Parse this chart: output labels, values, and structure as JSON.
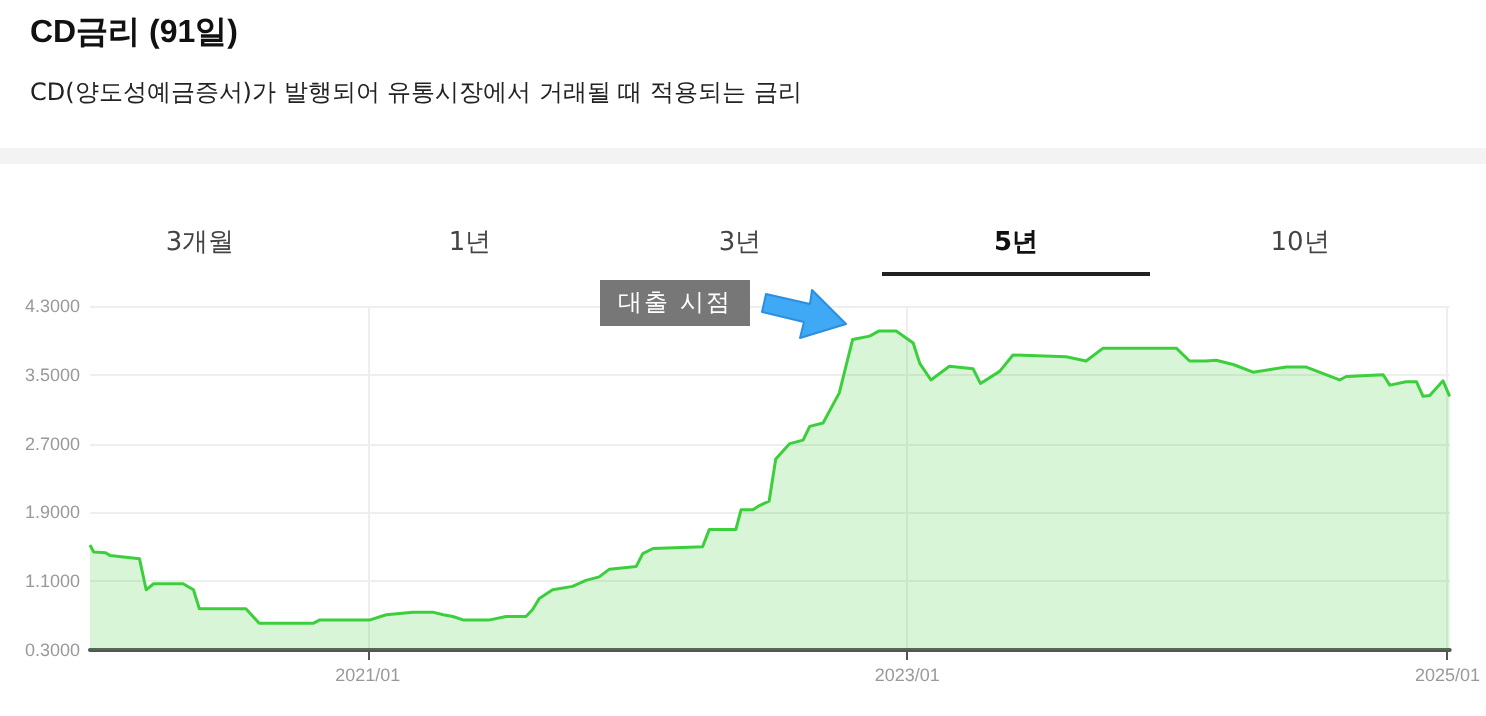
{
  "chart_data": {
    "type": "area",
    "title": "CD금리 (91일)",
    "subtitle": "CD(양도성예금증서)가 발행되어 유통시장에서 거래될 때 적용되는 금리",
    "annotations": [
      "3개월",
      "1년",
      "3년",
      "5년",
      "10년",
      "대출 시점"
    ],
    "x": [
      "2019-12-22",
      "2019-12-27",
      "2020-01-12",
      "2020-01-18",
      "2020-02-27",
      "2020-03-07",
      "2020-03-17",
      "2020-04-26",
      "2020-05-10",
      "2020-05-18",
      "2020-07-20",
      "2020-08-07",
      "2020-10-19",
      "2020-10-28",
      "2021-01-04",
      "2021-01-26",
      "2021-03-03",
      "2021-03-30",
      "2021-04-13",
      "2021-04-26",
      "2021-05-10",
      "2021-06-15",
      "2021-07-07",
      "2021-08-03",
      "2021-08-12",
      "2021-08-21",
      "2021-09-08",
      "2021-10-05",
      "2021-10-23",
      "2021-11-10",
      "2021-11-24",
      "2021-12-30",
      "2022-01-08",
      "2022-01-22",
      "2022-03-30",
      "2022-04-08",
      "2022-05-14",
      "2022-05-21",
      "2022-06-06",
      "2022-06-15",
      "2022-06-28",
      "2022-07-07",
      "2022-07-26",
      "2022-08-13",
      "2022-08-22",
      "2022-09-09",
      "2022-10-01",
      "2022-10-19",
      "2022-11-11",
      "2022-11-24",
      "2022-12-17",
      "2023-01-09",
      "2023-01-18",
      "2023-02-02",
      "2023-02-27",
      "2023-03-31",
      "2023-04-10",
      "2023-05-06",
      "2023-05-24",
      "2023-08-04",
      "2023-08-31",
      "2023-09-23",
      "2023-11-11",
      "2023-12-31",
      "2024-01-18",
      "2024-02-09",
      "2024-02-23",
      "2024-03-17",
      "2024-04-13",
      "2024-05-28",
      "2024-06-24",
      "2024-08-08",
      "2024-08-17",
      "2024-10-06",
      "2024-10-15",
      "2024-11-06",
      "2024-11-20",
      "2024-11-29",
      "2024-12-08",
      "2024-12-26",
      "2025-01-04"
    ],
    "series": [
      {
        "color": "#3ccf3c",
        "values": [
          1.52,
          1.44,
          1.43,
          1.4,
          1.36,
          1.0,
          1.07,
          1.07,
          1.0,
          0.78,
          0.78,
          0.61,
          0.61,
          0.65,
          0.65,
          0.71,
          0.74,
          0.74,
          0.71,
          0.69,
          0.65,
          0.65,
          0.69,
          0.69,
          0.77,
          0.9,
          1.0,
          1.04,
          1.11,
          1.15,
          1.24,
          1.27,
          1.42,
          1.48,
          1.5,
          1.7,
          1.7,
          1.93,
          1.93,
          1.98,
          2.03,
          2.52,
          2.7,
          2.74,
          2.9,
          2.94,
          3.29,
          3.91,
          3.95,
          4.01,
          4.01,
          3.87,
          3.63,
          3.44,
          3.6,
          3.57,
          3.4,
          3.54,
          3.73,
          3.71,
          3.66,
          3.81,
          3.81,
          3.81,
          3.66,
          3.66,
          3.67,
          3.62,
          3.53,
          3.59,
          3.59,
          3.44,
          3.48,
          3.5,
          3.38,
          3.42,
          3.42,
          3.25,
          3.26,
          3.43,
          3.25
        ]
      }
    ],
    "xlim": [
      "2019-12-22",
      "2025-01-04"
    ],
    "xticks": [
      {
        "value": "2021-01-01",
        "label": "2021/01"
      },
      {
        "value": "2023-01-01",
        "label": "2023/01"
      },
      {
        "value": "2025-01-01",
        "label": "2025/01"
      }
    ],
    "ylim": [
      0.3,
      4.3
    ],
    "yticks": [
      {
        "value": 0.3,
        "label": "0.3000"
      },
      {
        "value": 1.1,
        "label": "1.1000"
      },
      {
        "value": 1.9,
        "label": "1.9000"
      },
      {
        "value": 2.7,
        "label": "2.7000"
      },
      {
        "value": 3.5,
        "label": "3.5000"
      },
      {
        "value": 4.3,
        "label": "4.3000"
      }
    ],
    "grid": true,
    "marker": "none",
    "line_style": "solid"
  }
}
